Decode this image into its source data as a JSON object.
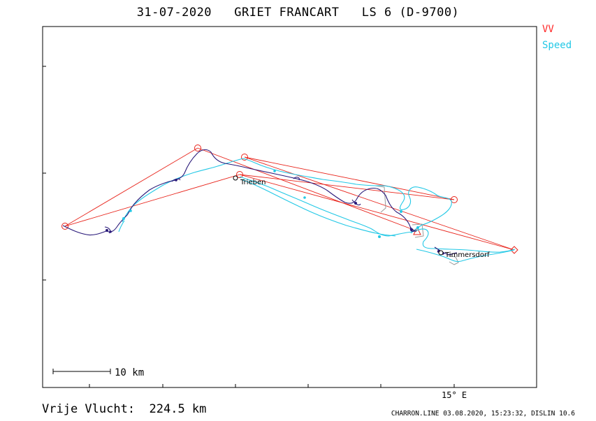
{
  "header": {
    "title": "31-07-2020   GRIET FRANCART   LS 6 (D-9700)"
  },
  "legend": {
    "items": [
      {
        "label": "VV",
        "color": "#ff2a2a"
      },
      {
        "label": "Speed",
        "color": "#22c8e6"
      }
    ]
  },
  "map": {
    "places": [
      {
        "name": "Trieben"
      },
      {
        "name": "Timmersdorf"
      }
    ],
    "longitude_label": "15° E",
    "scale_label": "10  km"
  },
  "footer": {
    "distance": "Vrije Vlucht:  224.5 km",
    "credit": "CHARRON.LINE 03.08.2020, 15:23:32, DISLIN 10.6"
  },
  "colors": {
    "task_line": "#e8231a",
    "track_vv": "#2a1a7a",
    "track_speed": "#22c8e6",
    "frame": "#000000"
  }
}
